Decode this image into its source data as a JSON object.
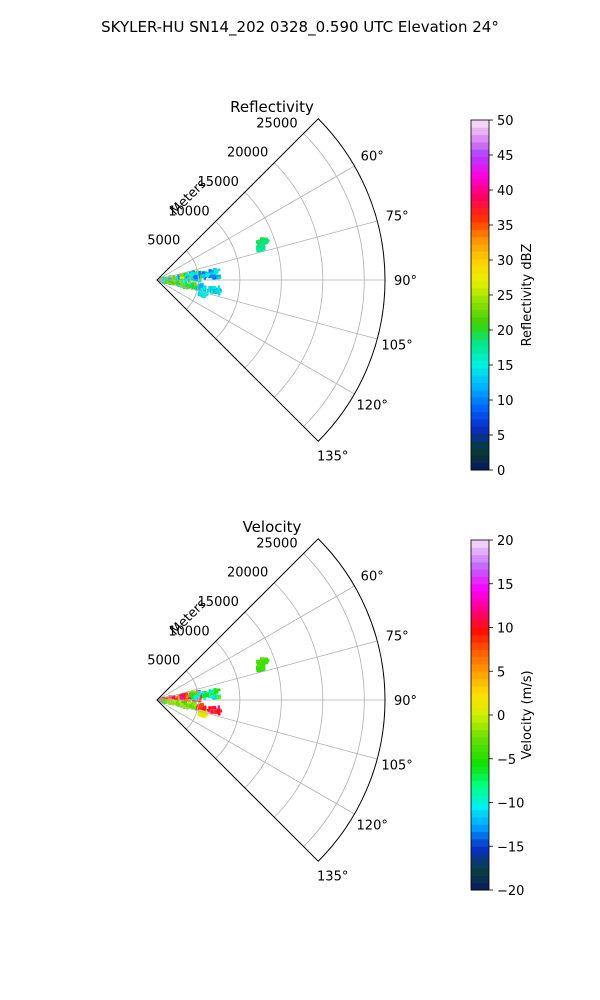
{
  "figure": {
    "suptitle": "SKYLER-HU  SN14_202  0328_0.590 UTC Elevation 24°"
  },
  "chart_data": [
    {
      "type": "polar-sector-radar",
      "title": "Reflectivity",
      "range_label": "Meters",
      "theta_range_deg": [
        45,
        135
      ],
      "r_max": 27500,
      "radial_ticks": [
        5000,
        10000,
        15000,
        20000,
        25000
      ],
      "radial_tick_labels": [
        "5000",
        "10000",
        "15000",
        "20000",
        "25000"
      ],
      "angle_ticks": [
        60,
        75,
        90,
        105,
        120,
        135
      ],
      "angle_tick_labels": [
        "60°",
        "75°",
        "90°",
        "105°",
        "120°",
        "135°"
      ],
      "grid": true,
      "colorbar": {
        "label": "Reflectivity dBZ",
        "range": [
          0,
          50
        ],
        "ticks": [
          0,
          5,
          10,
          15,
          20,
          25,
          30,
          35,
          40,
          45,
          50
        ],
        "tick_labels": [
          "0",
          "5",
          "10",
          "15",
          "20",
          "25",
          "30",
          "35",
          "40",
          "45",
          "50"
        ],
        "colormap": "pyart_HomeyerRainbow"
      },
      "echo_regions": [
        {
          "az_range": [
            78,
            91
          ],
          "r_range": [
            400,
            5200
          ],
          "value_range": [
            8,
            27
          ]
        },
        {
          "az_range": [
            80,
            88
          ],
          "r_range": [
            4200,
            7600
          ],
          "value_range": [
            8,
            18
          ]
        },
        {
          "az_range": [
            95,
            104
          ],
          "r_range": [
            800,
            4800
          ],
          "value_range": [
            15,
            25
          ]
        },
        {
          "az_range": [
            97,
            103
          ],
          "r_range": [
            5000,
            7800
          ],
          "value_range": [
            10,
            18
          ]
        },
        {
          "az_range": [
            105,
            109
          ],
          "r_range": [
            5400,
            6200
          ],
          "value_range": [
            12,
            18
          ]
        },
        {
          "az_range": [
            69,
            71
          ],
          "r_range": [
            13000,
            14200
          ],
          "value_range": [
            17,
            20
          ]
        },
        {
          "az_range": [
            72,
            74
          ],
          "r_range": [
            12600,
            13500
          ],
          "value_range": [
            16,
            20
          ]
        }
      ]
    },
    {
      "type": "polar-sector-radar",
      "title": "Velocity",
      "range_label": "Meters",
      "theta_range_deg": [
        45,
        135
      ],
      "r_max": 27500,
      "radial_ticks": [
        5000,
        10000,
        15000,
        20000,
        25000
      ],
      "radial_tick_labels": [
        "5000",
        "10000",
        "15000",
        "20000",
        "25000"
      ],
      "angle_ticks": [
        60,
        75,
        90,
        105,
        120,
        135
      ],
      "angle_tick_labels": [
        "60°",
        "75°",
        "90°",
        "105°",
        "120°",
        "135°"
      ],
      "grid": true,
      "colorbar": {
        "label": "Velocity (m/s)",
        "range": [
          -20,
          20
        ],
        "ticks": [
          -20,
          -15,
          -10,
          -5,
          0,
          5,
          10,
          15,
          20
        ],
        "tick_labels": [
          "−20",
          "−15",
          "−10",
          "−5",
          "0",
          "5",
          "10",
          "15",
          "20"
        ],
        "colormap": "pyart_BuDRd18"
      },
      "echo_regions": [
        {
          "az_range": [
            78,
            91
          ],
          "r_range": [
            400,
            5200
          ],
          "value_range": [
            3,
            14
          ]
        },
        {
          "az_range": [
            80,
            88
          ],
          "r_range": [
            4200,
            7600
          ],
          "value_range": [
            -12,
            -2
          ]
        },
        {
          "az_range": [
            95,
            104
          ],
          "r_range": [
            800,
            4800
          ],
          "value_range": [
            -5,
            0
          ]
        },
        {
          "az_range": [
            97,
            103
          ],
          "r_range": [
            5000,
            7800
          ],
          "value_range": [
            6,
            14
          ]
        },
        {
          "az_range": [
            105,
            109
          ],
          "r_range": [
            5400,
            6200
          ],
          "value_range": [
            0,
            2
          ]
        },
        {
          "az_range": [
            69,
            71
          ],
          "r_range": [
            13000,
            14200
          ],
          "value_range": [
            -5,
            -3
          ]
        },
        {
          "az_range": [
            72,
            74
          ],
          "r_range": [
            12600,
            13500
          ],
          "value_range": [
            -5,
            -3
          ]
        }
      ]
    }
  ]
}
